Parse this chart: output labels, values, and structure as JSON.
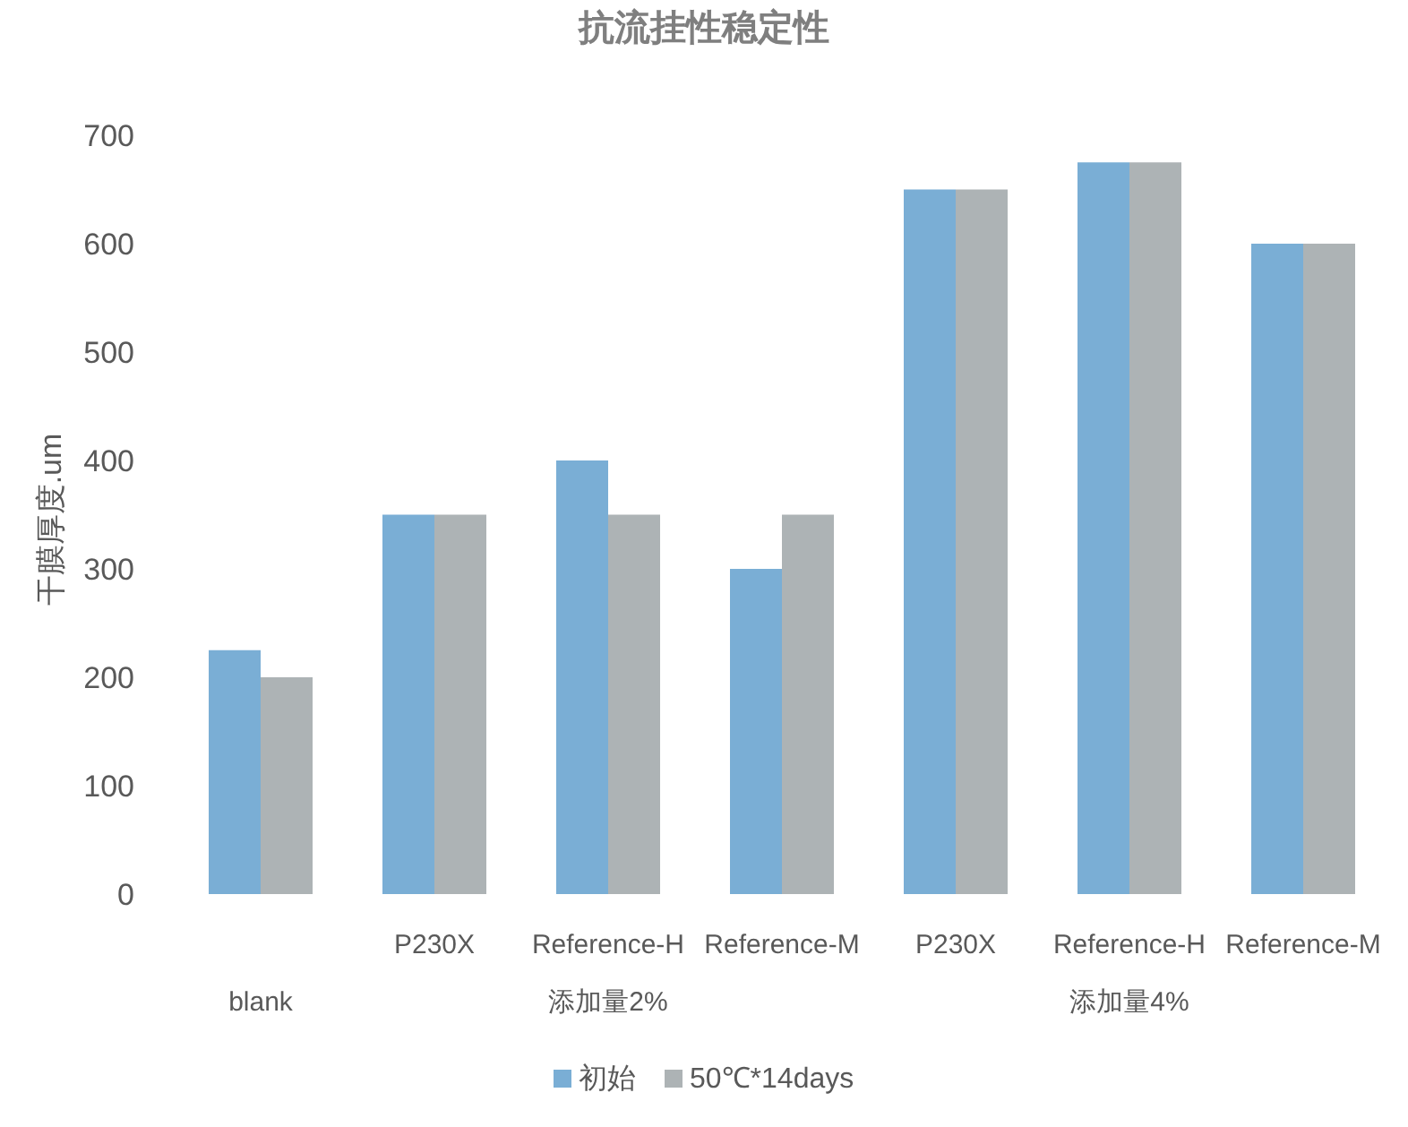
{
  "chart_data": {
    "type": "bar",
    "title": "抗流挂性稳定性",
    "ylabel": "干膜厚度.um",
    "categories": [
      null,
      "P230X",
      "Reference-H",
      "Reference-M",
      "P230X",
      "Reference-H",
      "Reference-M"
    ],
    "series": [
      {
        "name": "初始",
        "color": "#7aaed5",
        "values": [
          225,
          350,
          400,
          300,
          650,
          675,
          600
        ]
      },
      {
        "name": "50℃*14days",
        "color": "#adb3b5",
        "values": [
          200,
          350,
          350,
          350,
          650,
          675,
          600
        ]
      }
    ],
    "ylim": [
      0,
      700
    ],
    "yticks": [
      0,
      100,
      200,
      300,
      400,
      500,
      600,
      700
    ],
    "annotations": [
      "blank",
      "添加量2%",
      "添加量4%"
    ],
    "grid": false,
    "legend": "bottom"
  }
}
